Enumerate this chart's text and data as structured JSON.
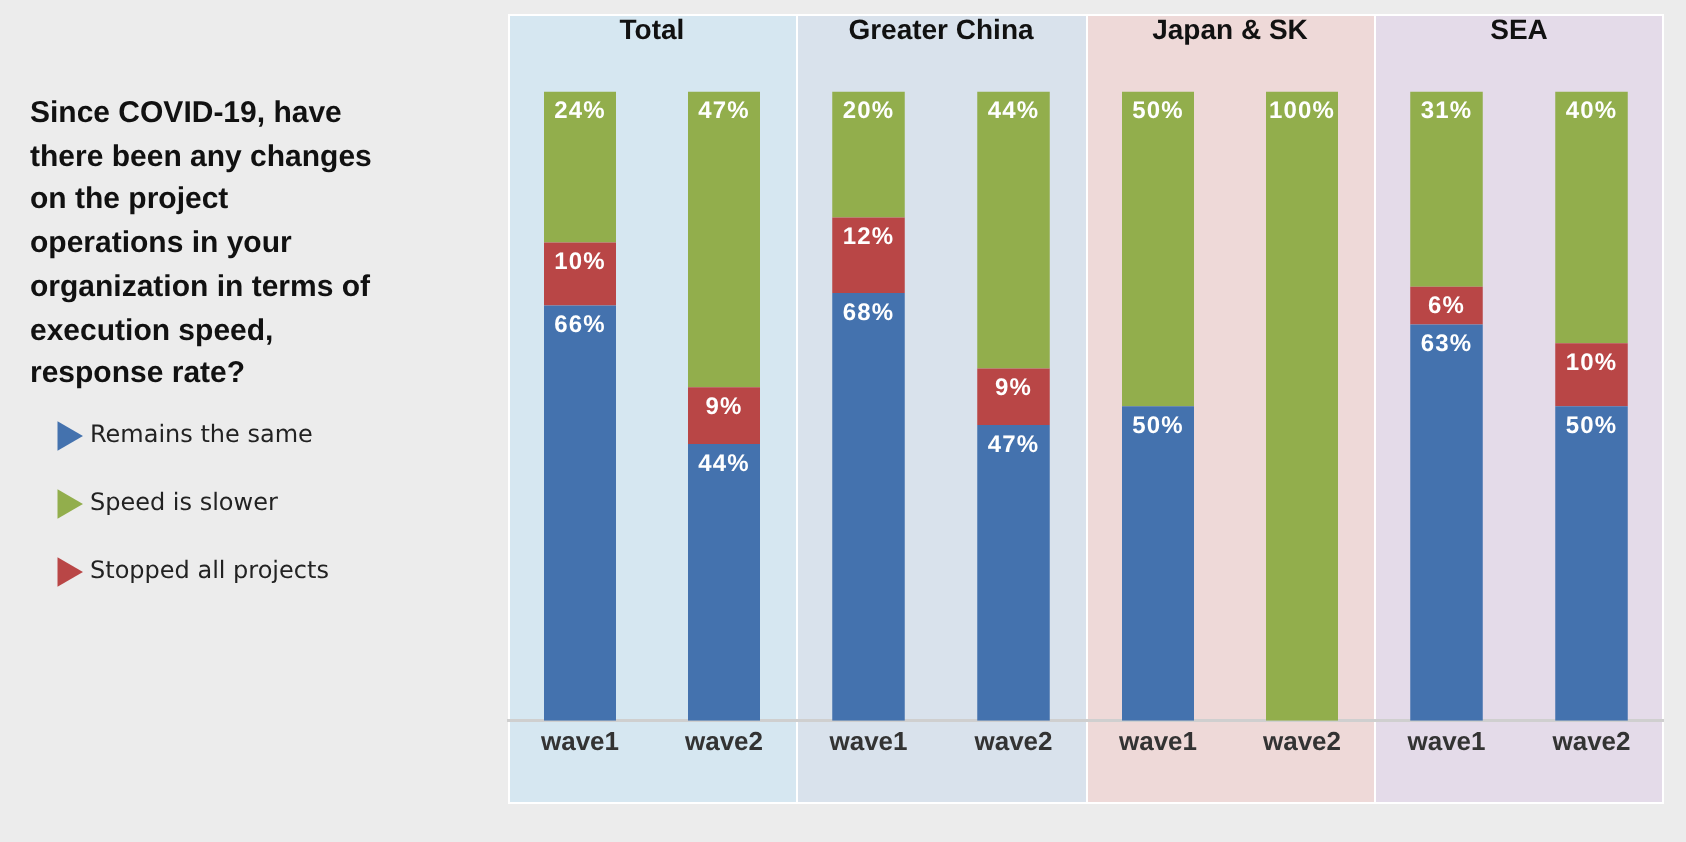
{
  "chart_data": [
    {
      "type": "bar",
      "title": "Total",
      "categories": [
        "wave1",
        "wave2"
      ],
      "stacked": true,
      "ylim": [
        0,
        100
      ],
      "tick_labels": "x",
      "legend": "left",
      "annotations": [
        "Since COVID-19, have there been any changes on the project operations in your organization in terms of execution speed, response rate?"
      ],
      "series": [
        {
          "name": "Remains the same",
          "color": "#4472ae",
          "values": [
            66,
            44
          ],
          "value_labels": [
            "66%",
            "44%"
          ]
        },
        {
          "name": "Stopped all projects",
          "color": "#b94646",
          "values": [
            10,
            9
          ],
          "value_labels": [
            "10%",
            "9%"
          ]
        },
        {
          "name": "Speed is slower",
          "color": "#92ae4c",
          "values": [
            24,
            47
          ],
          "value_labels": [
            "24%",
            "47%"
          ]
        }
      ]
    },
    {
      "type": "bar",
      "title": "Greater China",
      "categories": [
        "wave1",
        "wave2"
      ],
      "stacked": true,
      "ylim": [
        0,
        100
      ],
      "tick_labels": "x",
      "series": [
        {
          "color": "#4472ae",
          "values": [
            68,
            47
          ],
          "value_labels": [
            "68%",
            "47%"
          ]
        },
        {
          "color": "#b94646",
          "values": [
            12,
            9
          ],
          "value_labels": [
            "12%",
            "9%"
          ]
        },
        {
          "color": "#92ae4c",
          "values": [
            20,
            44
          ],
          "value_labels": [
            "20%",
            "44%"
          ]
        }
      ]
    },
    {
      "type": "bar",
      "title": "Japan & SK",
      "categories": [
        "wave1",
        "wave2"
      ],
      "stacked": true,
      "ylim": [
        0,
        100
      ],
      "tick_labels": "x",
      "series": [
        {
          "color": "#4472ae",
          "values": [
            50,
            0
          ],
          "value_labels": [
            "50%",
            null
          ]
        },
        {
          "color": "#b94646",
          "values": [
            0,
            0
          ],
          "value_labels": [
            null,
            null
          ]
        },
        {
          "color": "#92ae4c",
          "values": [
            50,
            100
          ],
          "value_labels": [
            "50%",
            "100%"
          ]
        }
      ]
    },
    {
      "type": "bar",
      "title": "SEA",
      "categories": [
        "wave1",
        "wave2"
      ],
      "stacked": true,
      "ylim": [
        0,
        100
      ],
      "tick_labels": "x",
      "series": [
        {
          "color": "#4472ae",
          "values": [
            63,
            50
          ],
          "value_labels": [
            "63%",
            "50%"
          ]
        },
        {
          "color": "#b94646",
          "values": [
            6,
            10
          ],
          "value_labels": [
            "6%",
            "10%"
          ]
        },
        {
          "color": "#92ae4c",
          "values": [
            31,
            40
          ],
          "value_labels": [
            "31%",
            "40%"
          ]
        }
      ]
    }
  ]
}
